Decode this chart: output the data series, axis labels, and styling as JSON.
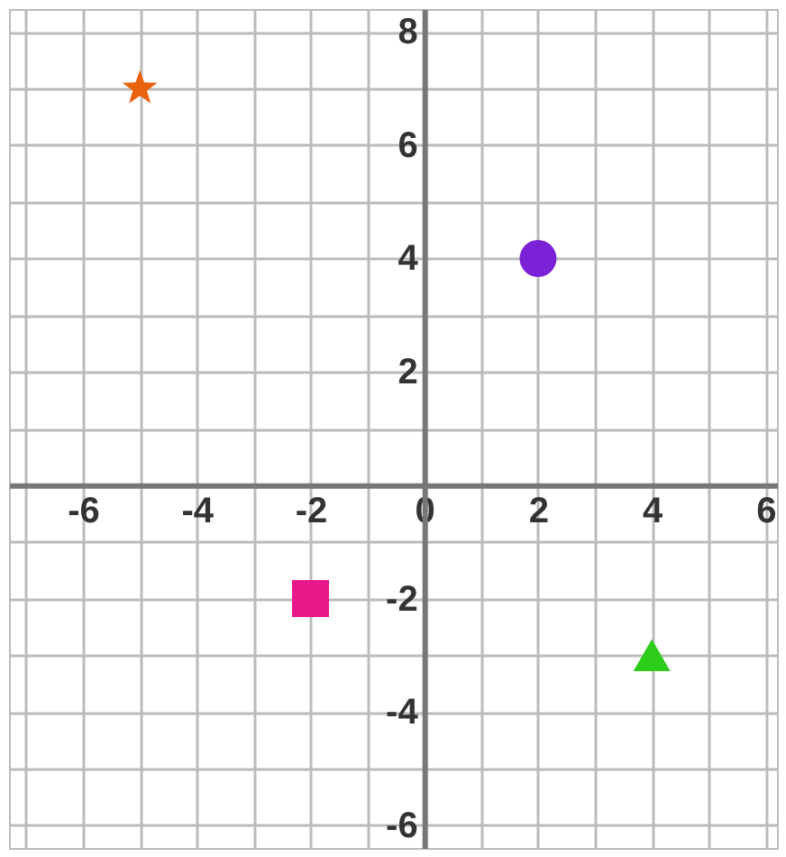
{
  "chart_data": {
    "type": "scatter",
    "xlim": [
      -7.3,
      6.2
    ],
    "ylim": [
      -6.4,
      8.4
    ],
    "xticks": [
      {
        "value": -7,
        "label": null
      },
      -6,
      {
        "value": -5,
        "label": null
      },
      -4,
      {
        "value": -3,
        "label": null
      },
      -2,
      {
        "value": -1,
        "label": null
      },
      0,
      {
        "value": 1,
        "label": null
      },
      2,
      {
        "value": 3,
        "label": null
      },
      4,
      {
        "value": 5,
        "label": null
      },
      6
    ],
    "yticks": [
      -6,
      {
        "value": -5,
        "label": null
      },
      -4,
      {
        "value": -3,
        "label": null
      },
      -2,
      {
        "value": -1,
        "label": null
      },
      {
        "value": 0,
        "label": null
      },
      {
        "value": 1,
        "label": null
      },
      2,
      {
        "value": 3,
        "label": null
      },
      4,
      {
        "value": 5,
        "label": null
      },
      6,
      {
        "value": 7,
        "label": null
      },
      8
    ],
    "grid": true,
    "series": [
      {
        "color": "#e8620f",
        "marker": "star",
        "x": [
          -5
        ],
        "values": [
          7
        ]
      },
      {
        "color": "#7b22d6",
        "marker": "circle",
        "x": [
          2
        ],
        "values": [
          4
        ]
      },
      {
        "color": "#e8178a",
        "marker": "square",
        "x": [
          -2
        ],
        "values": [
          -2
        ]
      },
      {
        "color": "#2ecc1a",
        "marker": "triangle",
        "x": [
          4
        ],
        "values": [
          -3
        ]
      }
    ]
  }
}
